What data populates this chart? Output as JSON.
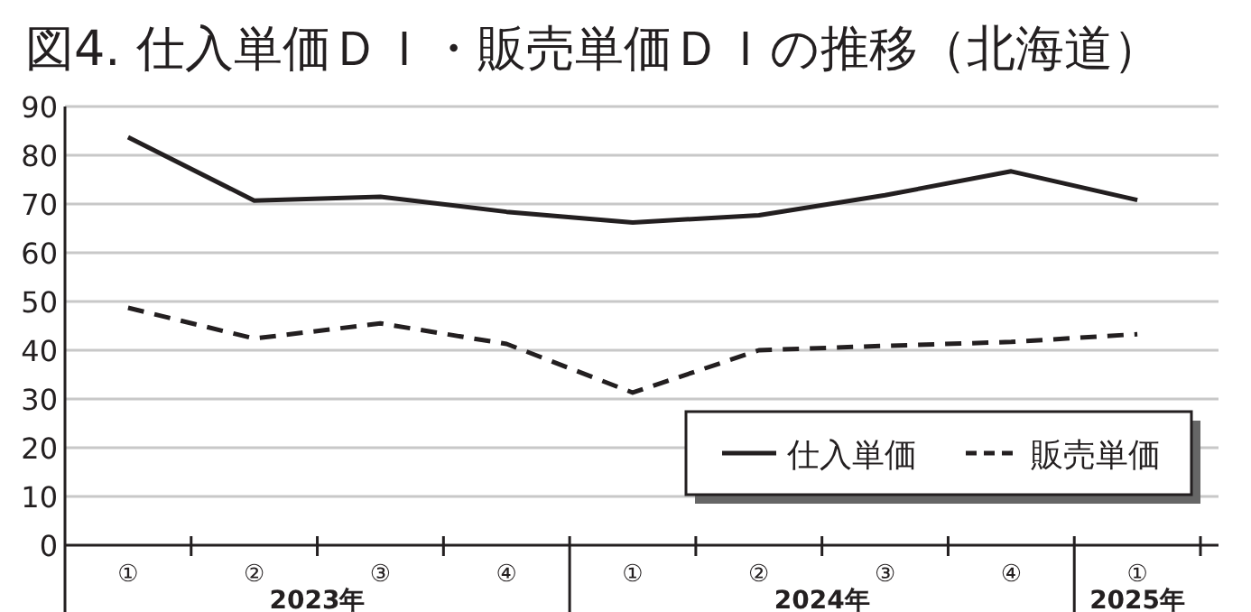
{
  "chart_data": {
    "type": "line",
    "title": "図4. 仕入単価ＤＩ・販売単価ＤＩの推移（北海道）",
    "categories": [
      "①",
      "②",
      "③",
      "④",
      "①",
      "②",
      "③",
      "④",
      "①"
    ],
    "series": [
      {
        "name": "仕入単価",
        "color": "#231f20",
        "line_style": "solid",
        "values": [
          83.7,
          70.7,
          71.5,
          68.4,
          66.2,
          67.7,
          71.8,
          76.7,
          70.8
        ]
      },
      {
        "name": "販売単価",
        "color": "#231f20",
        "line_style": "dashed",
        "values": [
          48.7,
          42.4,
          45.5,
          41.3,
          31.3,
          40,
          40.9,
          41.7,
          43.3
        ]
      }
    ],
    "annotations": [
      "2023年",
      "2024年",
      "2025年"
    ],
    "ylim": [
      0,
      90
    ],
    "yticks": [
      0,
      10,
      20,
      30,
      40,
      50,
      60,
      70,
      80,
      90
    ],
    "grid": "y",
    "legend": "bottom right",
    "marker": "none"
  }
}
